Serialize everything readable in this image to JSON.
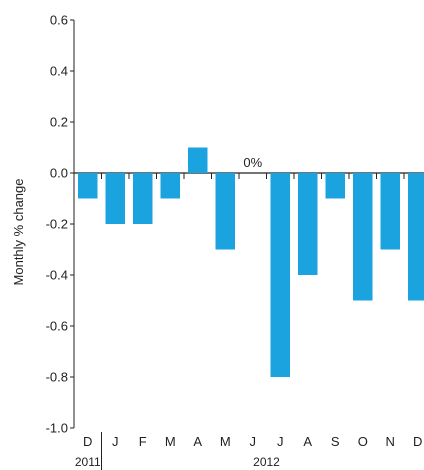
{
  "chart_data": {
    "type": "bar",
    "title": "",
    "xlabel": "",
    "ylabel": "Monthly % change",
    "ylim": [
      -1.0,
      0.6
    ],
    "yticks": [
      "0.6",
      "0.4",
      "0.2",
      "0.0",
      "-0.2",
      "-0.4",
      "-0.6",
      "-0.8",
      "-1.0"
    ],
    "categories": [
      "D",
      "J",
      "F",
      "M",
      "A",
      "M",
      "J",
      "J",
      "A",
      "S",
      "O",
      "N",
      "D"
    ],
    "values": [
      -0.1,
      -0.2,
      -0.2,
      -0.1,
      0.1,
      -0.3,
      0.0,
      -0.8,
      -0.4,
      -0.1,
      -0.5,
      -0.3,
      -0.5
    ],
    "year_labels": [
      {
        "label": "2011",
        "start_index": 0,
        "end_index": 0
      },
      {
        "label": "2012",
        "start_index": 1,
        "end_index": 12
      }
    ],
    "annotations": [
      {
        "text": "0%",
        "category_index": 6
      }
    ],
    "bar_color": "#1aa3de",
    "grid": false,
    "legend": "none"
  }
}
